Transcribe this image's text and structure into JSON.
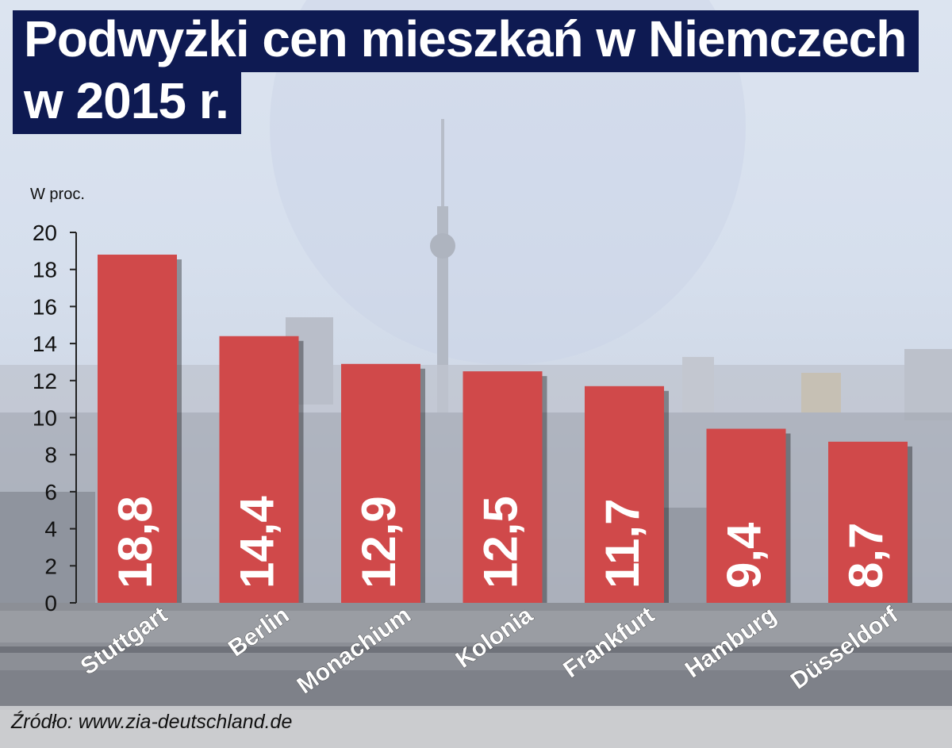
{
  "title_lines": [
    "Podwyżki cen mieszkań w Niemczech",
    "w 2015 r."
  ],
  "source": "Źródło: www.zia-deutschland.de",
  "colors": {
    "bar": "#d0494a",
    "title_bg": "#0e1a52",
    "value_text": "#ffffff"
  },
  "chart_data": {
    "type": "bar",
    "title": "Podwyżki cen mieszkań w Niemczech w 2015 r.",
    "ylabel": "W proc.",
    "xlabel": "",
    "categories": [
      "Stuttgart",
      "Berlin",
      "Monachium",
      "Kolonia",
      "Frankfurt",
      "Hamburg",
      "Düsseldorf"
    ],
    "values": [
      18.8,
      14.4,
      12.9,
      12.5,
      11.7,
      9.4,
      8.7
    ],
    "value_labels": [
      "18,8",
      "14,4",
      "12,9",
      "12,5",
      "11,7",
      "9,4",
      "8,7"
    ],
    "ylim": [
      0,
      20
    ],
    "yticks": [
      0,
      2,
      4,
      6,
      8,
      10,
      12,
      14,
      16,
      18,
      20
    ],
    "grid": false,
    "legend": "none"
  }
}
